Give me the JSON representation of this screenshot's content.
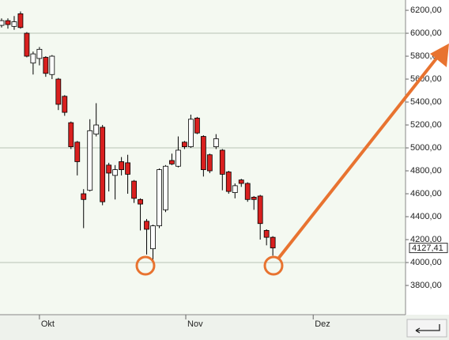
{
  "chart_data": {
    "type": "candlestick",
    "categories": [
      null,
      null,
      null,
      null,
      null,
      null,
      null,
      null,
      null,
      null,
      null,
      null,
      null,
      null,
      null,
      null,
      null,
      null,
      null,
      null,
      null,
      null,
      null,
      null,
      null,
      null,
      null,
      null,
      null,
      null,
      null,
      null,
      null,
      null,
      null,
      null,
      null,
      null,
      null,
      null,
      null,
      null,
      null,
      null
    ],
    "open": [
      6069,
      6110,
      6060,
      6170,
      6000,
      5740,
      5780,
      5790,
      5640,
      5600,
      5450,
      5220,
      5050,
      4600,
      4630,
      5120,
      5180,
      4850,
      4760,
      4880,
      4870,
      4710,
      4550,
      4360,
      4120,
      4320,
      4460,
      4890,
      4840,
      5050,
      5010,
      5260,
      5100,
      4940,
      5010,
      4980,
      4790,
      4610,
      4720,
      4690,
      4570,
      4580,
      4280,
      4220
    ],
    "high": [
      6130,
      6130,
      6150,
      6190,
      6010,
      5840,
      5880,
      5800,
      5810,
      5610,
      5460,
      5230,
      5060,
      4640,
      5250,
      5390,
      5200,
      4870,
      4850,
      4920,
      4940,
      4720,
      4560,
      4380,
      4330,
      4820,
      4850,
      4950,
      5100,
      5060,
      5290,
      5270,
      5110,
      4950,
      5120,
      4990,
      4800,
      4690,
      4730,
      4700,
      4580,
      4590,
      4290,
      4230
    ],
    "low": [
      6050,
      6040,
      6030,
      6040,
      5790,
      5640,
      5720,
      5620,
      5600,
      5330,
      5280,
      4990,
      4760,
      4300,
      4620,
      5100,
      4500,
      4620,
      4550,
      4760,
      4600,
      4520,
      4280,
      4070,
      4000,
      4300,
      4440,
      4850,
      4830,
      4990,
      5000,
      5120,
      4750,
      4780,
      4990,
      4630,
      4600,
      4560,
      4660,
      4530,
      4460,
      4200,
      4150,
      4060
    ],
    "close": [
      6110,
      6076,
      6100,
      6050,
      5800,
      5820,
      5860,
      5650,
      5800,
      5380,
      5310,
      5010,
      4880,
      4550,
      5150,
      5200,
      4530,
      4780,
      4810,
      4810,
      4770,
      4560,
      4510,
      4290,
      4320,
      4810,
      4840,
      4860,
      4980,
      5010,
      5250,
      5130,
      4810,
      4800,
      5080,
      4770,
      4620,
      4670,
      4690,
      4550,
      4550,
      4340,
      4220,
      4127.41
    ],
    "up_color": "#ffffff",
    "down_color": "#d9201f",
    "ylim": [
      3545,
      6290
    ],
    "yticks": [
      {
        "value": 3800,
        "label": "3800,00"
      },
      {
        "value": 4000,
        "label": "4000,00"
      },
      {
        "value": 4200,
        "label": "4200,00"
      },
      {
        "value": 4400,
        "label": "4400,00"
      },
      {
        "value": 4600,
        "label": "4600,00"
      },
      {
        "value": 4800,
        "label": "4800,00"
      },
      {
        "value": 5000,
        "label": "5000,00"
      },
      {
        "value": 5200,
        "label": "5200,00"
      },
      {
        "value": 5400,
        "label": "5400,00"
      },
      {
        "value": 5600,
        "label": "5600,00"
      },
      {
        "value": 5800,
        "label": "5800,00"
      },
      {
        "value": 6000,
        "label": "6000,00"
      },
      {
        "value": 6200,
        "label": "6200,00"
      }
    ],
    "grid_lines": [
      4000,
      5000,
      6000
    ],
    "xticks": [
      {
        "value": 6,
        "label": "Okt"
      },
      {
        "value": 29.2,
        "label": "Nov"
      },
      {
        "value": 49.4,
        "label": "Dez"
      }
    ],
    "last_price": {
      "value": 4127.41,
      "label": "4127,41"
    }
  }
}
